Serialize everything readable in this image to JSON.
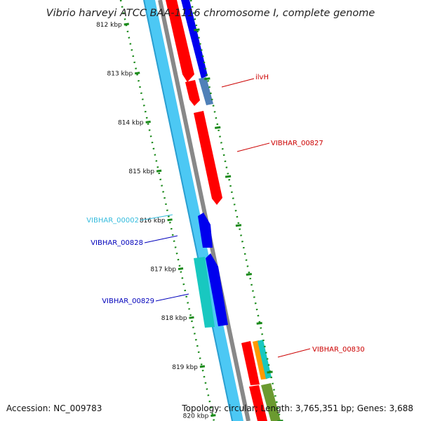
{
  "title": "Vibrio harveyi ATCC BAA-1116 chromosome I, complete genome",
  "footer": {
    "accession": "Accession: NC_009783",
    "summary": "Topology: circular; Length: 3,765,351 bp; Genes: 3,688"
  },
  "colors": {
    "outer_ring": "#4cc8f4",
    "backbone": "#888888",
    "gene_red": "#ff0000",
    "gene_blue": "#0000ee",
    "gene_steel": "#4f80b8",
    "gene_teal": "#18c8c0",
    "gene_orange": "#ff9900",
    "gene_olive": "#6b9a30",
    "tick_green": "#1a8a1a",
    "label_red": "#cc0000",
    "label_blue": "#0000bb",
    "label_cyan": "#33bbdd"
  },
  "ruler": {
    "unit": "kbp",
    "ticks": [
      {
        "label": "812 kbp"
      },
      {
        "label": "813 kbp"
      },
      {
        "label": "814 kbp"
      },
      {
        "label": "815 kbp"
      },
      {
        "label": "816 kbp"
      },
      {
        "label": "817 kbp"
      },
      {
        "label": "818 kbp"
      },
      {
        "label": "819 kbp"
      },
      {
        "label": "820 kbp"
      }
    ]
  },
  "gene_labels": [
    {
      "name": "ilvH",
      "color": "label_red"
    },
    {
      "name": "VIBHAR_00827",
      "color": "label_red"
    },
    {
      "name": "VIBHAR_00002",
      "color": "label_cyan"
    },
    {
      "name": "VIBHAR_00828",
      "color": "label_blue"
    },
    {
      "name": "VIBHAR_00829",
      "color": "label_blue"
    },
    {
      "name": "VIBHAR_00830",
      "color": "label_red"
    }
  ]
}
